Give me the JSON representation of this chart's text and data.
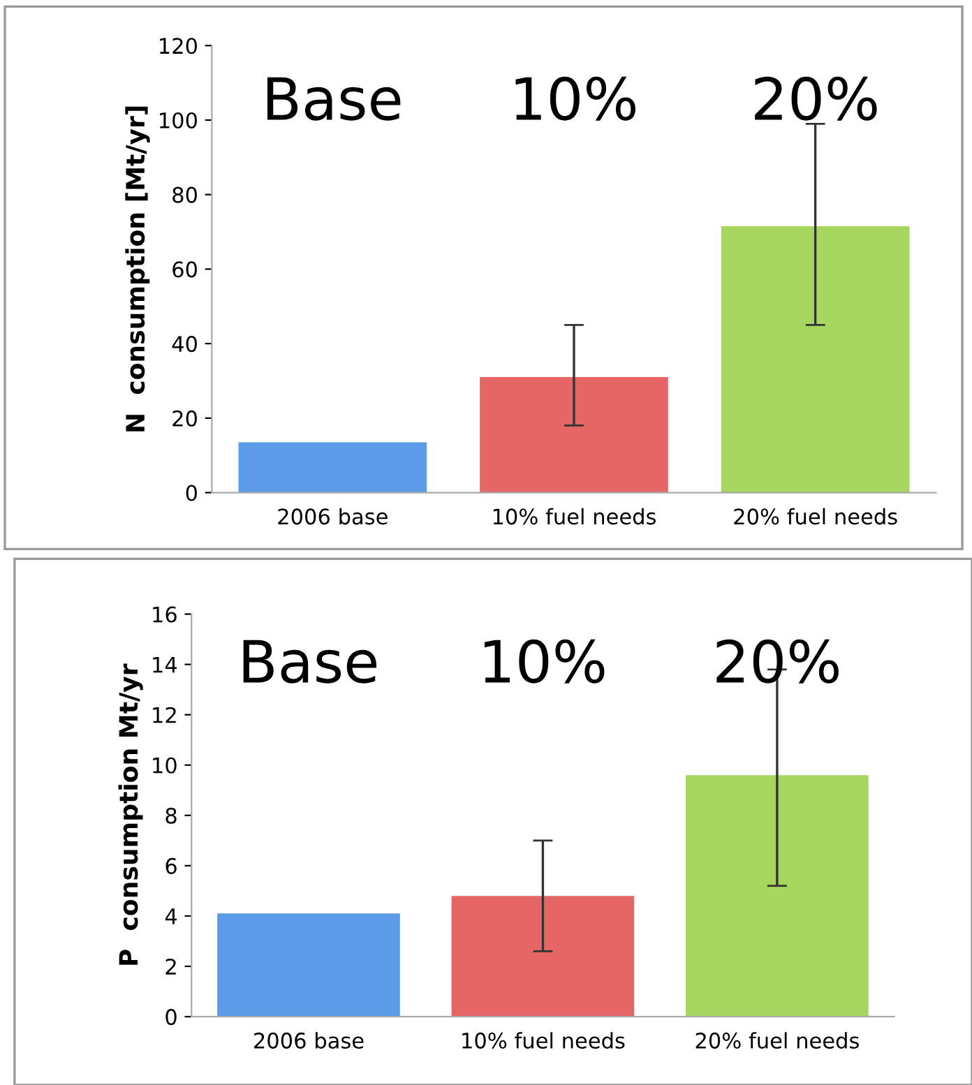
{
  "chart_data": [
    {
      "type": "bar",
      "ylabel": "N  consumption [Mt/yr]",
      "categories": [
        "2006 base",
        "10% fuel needs",
        "20% fuel needs"
      ],
      "values": [
        13.5,
        31,
        71.5
      ],
      "colors": [
        "#5b9be8",
        "#e66565",
        "#a6d65e"
      ],
      "errors": [
        null,
        [
          18,
          45
        ],
        [
          45,
          99
        ]
      ],
      "ylim": [
        0,
        120
      ],
      "yticks": [
        0,
        20,
        40,
        60,
        80,
        100,
        120
      ],
      "grid": false,
      "annotations": [
        "Base",
        "10%",
        "20%"
      ]
    },
    {
      "type": "bar",
      "ylabel": "P  consumption Mt/yr",
      "categories": [
        "2006 base",
        "10% fuel needs",
        "20% fuel needs"
      ],
      "values": [
        4.1,
        4.8,
        9.6
      ],
      "colors": [
        "#5b9be8",
        "#e66565",
        "#a6d65e"
      ],
      "errors": [
        null,
        [
          2.6,
          7.0
        ],
        [
          5.2,
          13.8
        ]
      ],
      "ylim": [
        0,
        16
      ],
      "yticks": [
        0,
        2,
        4,
        6,
        8,
        10,
        12,
        14,
        16
      ],
      "grid": false,
      "annotations": [
        "Base",
        "10%",
        "20%"
      ]
    }
  ]
}
